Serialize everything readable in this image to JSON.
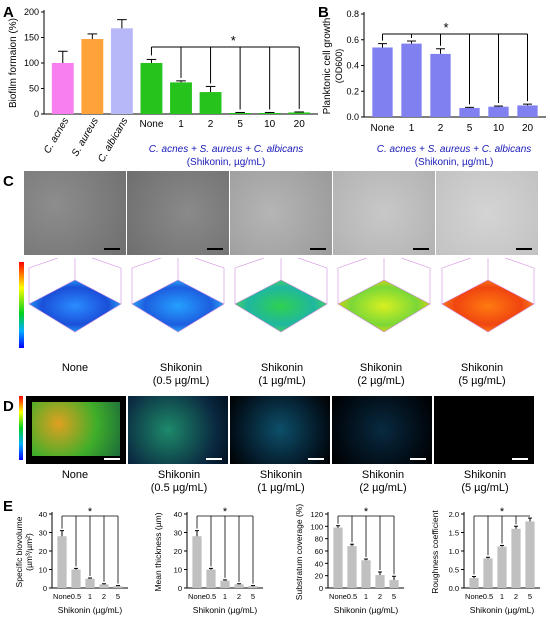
{
  "panels": {
    "A": {
      "letter": "A"
    },
    "B": {
      "letter": "B"
    },
    "C": {
      "letter": "C",
      "captions": [
        [
          "None",
          ""
        ],
        [
          "Shikonin",
          "(0.5 µg/mL)"
        ],
        [
          "Shikonin",
          "(1 µg/mL)"
        ],
        [
          "Shikonin",
          "(2 µg/mL)"
        ],
        [
          "Shikonin",
          "(5 µg/mL)"
        ]
      ]
    },
    "D": {
      "letter": "D",
      "captions": [
        [
          "None",
          ""
        ],
        [
          "Shikonin",
          "(0.5 µg/mL)"
        ],
        [
          "Shikonin",
          "(1 µg/mL)"
        ],
        [
          "Shikonin",
          "(2 µg/mL)"
        ],
        [
          "Shikonin",
          "(5 µg/mL)"
        ]
      ]
    },
    "E": {
      "letter": "E"
    }
  },
  "colors": {
    "cacnes": "#f77ff0",
    "saureus": "#ffa23a",
    "calbicans": "#b7b8f7",
    "mix": "#27c31d",
    "planktonic": "#8080f0",
    "grey": "#c0c0c0",
    "blue_text": "#1a1ab8"
  },
  "chart_data": [
    {
      "id": "A",
      "type": "bar",
      "ylabel": "Biofilm formaion (%)",
      "ylim": [
        0,
        200
      ],
      "yticks": [
        0,
        50,
        100,
        150,
        200
      ],
      "categories": [
        "C. acnes",
        "S. aureus",
        "C. albicans",
        "None",
        "1",
        "2",
        "5",
        "10",
        "20"
      ],
      "values": [
        100,
        147,
        168,
        100,
        62,
        43,
        2,
        2,
        3
      ],
      "errors": [
        23,
        10,
        17,
        7,
        3,
        11,
        1,
        1,
        1
      ],
      "group_label_line1": "C. acnes + S. aureus + C. albicans",
      "group_label_line2": "(Shikonin, µg/mL)",
      "significance": "*"
    },
    {
      "id": "B",
      "type": "bar",
      "ylabel_line1": "Planktonic cell growth",
      "ylabel_line2": "(OD600)",
      "ylim": [
        0,
        0.8
      ],
      "yticks": [
        "0.0",
        "0.2",
        "0.4",
        "0.6",
        "0.8"
      ],
      "categories": [
        "None",
        "1",
        "2",
        "5",
        "10",
        "20"
      ],
      "values": [
        0.54,
        0.57,
        0.49,
        0.07,
        0.08,
        0.09
      ],
      "errors": [
        0.03,
        0.02,
        0.04,
        0.005,
        0.005,
        0.01
      ],
      "group_label_line1": "C. acnes + S. aureus + C. albicans",
      "group_label_line2": "(Shikonin, µg/mL)",
      "significance": "*"
    },
    {
      "id": "E1",
      "type": "bar",
      "ylabel_line1": "Specific biovolume",
      "ylabel_line2": "(µm³/µm²)",
      "ylim": [
        0,
        40
      ],
      "yticks": [
        "0",
        "10",
        "20",
        "30",
        "40"
      ],
      "categories": [
        "None",
        "0.5",
        "1",
        "2",
        "5"
      ],
      "values": [
        28,
        10,
        5,
        2,
        1
      ],
      "errors": [
        3,
        0.6,
        0.4,
        0.3,
        0.3
      ],
      "xlabel": "Shikonin (µg/mL)",
      "significance": "*"
    },
    {
      "id": "E2",
      "type": "bar",
      "ylabel_line1": "Mean thickness (µm)",
      "ylabel_line2": "",
      "ylim": [
        0,
        40
      ],
      "yticks": [
        "0",
        "10",
        "20",
        "30",
        "40"
      ],
      "categories": [
        "None",
        "0.5",
        "1",
        "2",
        "5"
      ],
      "values": [
        28,
        10,
        4,
        2,
        1
      ],
      "errors": [
        3,
        0.6,
        0.4,
        0.3,
        0.3
      ],
      "xlabel": "Shikonin (µg/mL)",
      "significance": "*"
    },
    {
      "id": "E3",
      "type": "bar",
      "ylabel_line1": "Substratum coverage (%)",
      "ylabel_line2": "",
      "ylim": [
        0,
        120
      ],
      "yticks": [
        "0",
        "20",
        "40",
        "60",
        "80",
        "100",
        "120"
      ],
      "categories": [
        "None",
        "0.5",
        "1",
        "2",
        "5"
      ],
      "values": [
        98,
        68,
        45,
        21,
        13
      ],
      "errors": [
        3,
        3,
        2,
        5,
        6
      ],
      "xlabel": "Shikonin (µg/mL)",
      "significance": "*"
    },
    {
      "id": "E4",
      "type": "bar",
      "ylabel_line1": "Roughness coefficient",
      "ylabel_line2": "",
      "ylim": [
        0,
        2.0
      ],
      "yticks": [
        "0.0",
        "0.5",
        "1.0",
        "1.5",
        "2.0"
      ],
      "categories": [
        "None",
        "0.5",
        "1",
        "2",
        "5"
      ],
      "values": [
        0.27,
        0.8,
        1.12,
        1.6,
        1.8
      ],
      "errors": [
        0.04,
        0.03,
        0.03,
        0.07,
        0.09
      ],
      "xlabel": "Shikonin (µg/mL)",
      "significance": "*"
    }
  ]
}
